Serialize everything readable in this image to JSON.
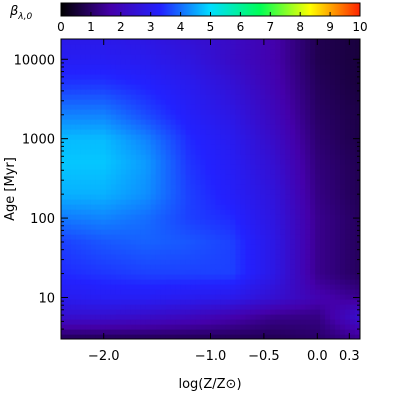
{
  "chart_data": {
    "type": "heatmap",
    "xlabel": "log(Z/Z⊙)",
    "ylabel": "Age [Myr]",
    "colorbar": {
      "label": "βλ,0",
      "range": [
        0,
        10
      ],
      "ticks": [
        0,
        1,
        2,
        3,
        4,
        5,
        6,
        7,
        8,
        9,
        10
      ],
      "tick_labels": [
        "0",
        "1",
        "2",
        "3",
        "4",
        "5",
        "6",
        "7",
        "8",
        "9",
        "10"
      ],
      "colormap": [
        "#000000",
        "#4400aa",
        "#2222ff",
        "#00ddff",
        "#00ff55",
        "#ffff00",
        "#ff2200"
      ]
    },
    "xlim": [
      -2.4,
      0.4
    ],
    "ylim": [
      3,
      18000
    ],
    "y_scale": "log",
    "x_ticks": [
      {
        "value": -2.0,
        "label": "−2.0"
      },
      {
        "value": -1.0,
        "label": "−1.0"
      },
      {
        "value": -0.5,
        "label": "−0.5"
      },
      {
        "value": 0.0,
        "label": "0.0"
      },
      {
        "value": 0.3,
        "label": "0.3"
      }
    ],
    "y_ticks": [
      {
        "value": 10,
        "label": "10"
      },
      {
        "value": 100,
        "label": "100"
      },
      {
        "value": 1000,
        "label": "1000"
      },
      {
        "value": 10000,
        "label": "10000"
      }
    ],
    "x_grid": [
      -2.4,
      -2.0,
      -1.6,
      -1.2,
      -0.8,
      -0.4,
      0.0,
      0.4
    ],
    "y_grid": [
      3,
      6,
      10,
      20,
      50,
      100,
      200,
      500,
      1000,
      2000,
      5000,
      10000,
      18000
    ],
    "z_values": [
      [
        0.8,
        0.8,
        0.8,
        0.8,
        0.8,
        0.8,
        1.0,
        1.4
      ],
      [
        2.4,
        2.4,
        2.3,
        2.1,
        1.8,
        1.4,
        1.3,
        2.4
      ],
      [
        3.0,
        3.1,
        3.1,
        3.0,
        2.9,
        2.4,
        1.8,
        1.4
      ],
      [
        3.4,
        3.5,
        3.6,
        3.6,
        3.6,
        2.8,
        1.4,
        0.9
      ],
      [
        3.6,
        3.8,
        3.9,
        3.8,
        3.6,
        2.8,
        1.4,
        0.9
      ],
      [
        4.1,
        4.2,
        4.0,
        3.6,
        3.4,
        2.7,
        1.4,
        0.9
      ],
      [
        4.6,
        4.6,
        4.3,
        3.6,
        3.2,
        2.6,
        1.3,
        0.8
      ],
      [
        4.8,
        4.8,
        4.4,
        3.5,
        3.1,
        2.4,
        1.2,
        0.8
      ],
      [
        4.7,
        4.7,
        4.2,
        3.4,
        3.0,
        2.2,
        1.1,
        0.7
      ],
      [
        4.2,
        4.2,
        3.7,
        3.2,
        2.8,
        2.0,
        1.0,
        0.7
      ],
      [
        3.5,
        3.5,
        3.3,
        3.0,
        2.5,
        1.8,
        0.9,
        0.6
      ],
      [
        3.1,
        3.1,
        3.0,
        2.7,
        2.2,
        1.7,
        0.8,
        0.6
      ],
      [
        2.9,
        2.9,
        2.8,
        2.5,
        2.2,
        1.7,
        0.8,
        0.6
      ]
    ]
  }
}
